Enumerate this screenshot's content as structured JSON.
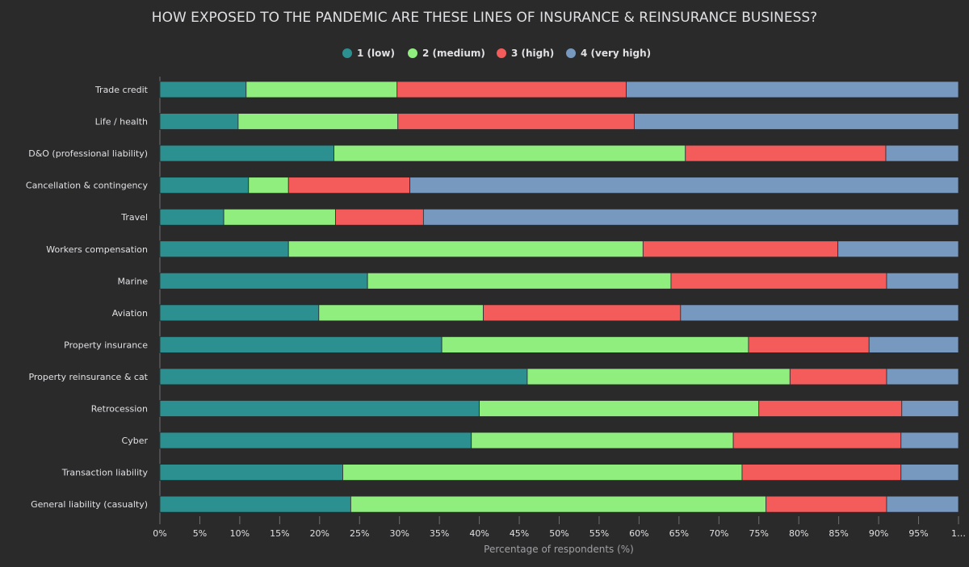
{
  "chart_data": {
    "type": "bar",
    "orientation": "horizontal",
    "stacked": "percent",
    "title": "HOW EXPOSED TO THE PANDEMIC ARE THESE LINES OF INSURANCE & REINSURANCE BUSINESS?",
    "xlabel": "Percentage of respondents (%)",
    "ylabel": "",
    "xlim": [
      0,
      100
    ],
    "x_ticks": [
      "0%",
      "5%",
      "10%",
      "15%",
      "20%",
      "25%",
      "30%",
      "35%",
      "40%",
      "45%",
      "50%",
      "55%",
      "60%",
      "65%",
      "70%",
      "75%",
      "80%",
      "85%",
      "90%",
      "95%",
      "1…"
    ],
    "legend_position": "top-center",
    "grid": false,
    "categories": [
      "Trade credit",
      "Life / health",
      "D&O (professional liability)",
      "Cancellation & contingency",
      "Travel",
      "Workers compensation",
      "Marine",
      "Aviation",
      "Property insurance",
      "Property reinsurance & cat",
      "Retrocession",
      "Cyber",
      "Transaction liability",
      "General liability (casualty)"
    ],
    "series": [
      {
        "name": "1 (low)",
        "color": "#2b908f",
        "values": [
          10.8,
          9.8,
          21.8,
          11.1,
          8.0,
          16.1,
          26.0,
          19.9,
          35.3,
          46.0,
          40.0,
          39.0,
          22.9,
          23.9
        ]
      },
      {
        "name": "2 (medium)",
        "color": "#90ee7e",
        "values": [
          18.9,
          20.0,
          44.0,
          5.0,
          14.0,
          44.4,
          38.0,
          20.6,
          38.4,
          32.9,
          35.0,
          32.8,
          50.0,
          52.0
        ]
      },
      {
        "name": "3 (high)",
        "color": "#f45b5b",
        "values": [
          28.7,
          29.6,
          25.1,
          15.2,
          11.0,
          24.4,
          27.0,
          24.7,
          15.1,
          12.1,
          17.9,
          21.0,
          19.9,
          15.1
        ]
      },
      {
        "name": "4 (very high)",
        "color": "#7798bf",
        "values": [
          41.6,
          40.6,
          9.1,
          68.7,
          67.0,
          15.1,
          9.0,
          34.8,
          11.2,
          9.0,
          7.1,
          7.2,
          7.2,
          9.0
        ]
      }
    ]
  }
}
